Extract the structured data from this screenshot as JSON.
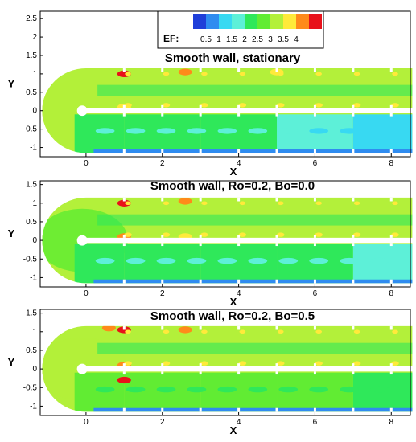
{
  "colors": {
    "levels": [
      "#1f3fd9",
      "#2f8cf0",
      "#38d9f2",
      "#5df0d8",
      "#2fe85a",
      "#61ec33",
      "#b3f03a",
      "#ffea3a",
      "#ff8a1a",
      "#e8111a"
    ],
    "background": "#ffffff",
    "gap": "#ffffff",
    "rib": "#ffffff"
  },
  "legend": {
    "title": "EF:",
    "ticks": [
      "0.5",
      "1",
      "1.5",
      "2",
      "2.5",
      "3",
      "3.5",
      "4"
    ]
  },
  "chart_data": [
    {
      "type": "heatmap",
      "title": "Smooth wall, stationary",
      "xlabel": "X",
      "ylabel": "Y",
      "xlim": [
        -1.2,
        8.5
      ],
      "ylim": [
        -1.25,
        2.7
      ],
      "xticks": [
        "0",
        "2",
        "4",
        "6",
        "8"
      ],
      "yticks": [
        "2.5",
        "2",
        "1.5",
        "1",
        "0.5",
        "0",
        "-0.5",
        "-1"
      ],
      "colorbar": {
        "label": "EF",
        "levels": [
          0.5,
          1,
          1.5,
          2,
          2.5,
          3,
          3.5,
          4
        ]
      },
      "upper_passage_EF": 2.5,
      "turn_EF": 2.5,
      "lower_passage_EF": [
        {
          "x": 0,
          "EF": 1.5
        },
        {
          "x": 2,
          "EF": 1.5
        },
        {
          "x": 4,
          "EF": 1.5
        },
        {
          "x": 6,
          "EF": 1.0
        },
        {
          "x": 8,
          "EF": 0.5
        }
      ],
      "hot_spots": [
        {
          "x": 1.0,
          "y": 1.0,
          "EF": 4
        },
        {
          "x": 2.6,
          "y": 1.05,
          "EF": 3.5
        },
        {
          "x": 1.0,
          "y": 0.1,
          "EF": 3
        },
        {
          "x": 5.0,
          "y": 1.05,
          "EF": 3
        }
      ]
    },
    {
      "type": "heatmap",
      "title": "Smooth wall, Ro=0.2, Bo=0.0",
      "xlabel": "X",
      "ylabel": "Y",
      "xlim": [
        -1.2,
        8.5
      ],
      "ylim": [
        -1.25,
        1.6
      ],
      "xticks": [
        "0",
        "2",
        "4",
        "6",
        "8"
      ],
      "yticks": [
        "1.5",
        "1",
        "0.5",
        "0",
        "-0.5",
        "-1"
      ],
      "colorbar": {
        "label": "EF",
        "levels": [
          0.5,
          1,
          1.5,
          2,
          2.5,
          3,
          3.5,
          4
        ]
      },
      "upper_passage_EF": 2.5,
      "turn_EF": 2.0,
      "lower_passage_EF": [
        {
          "x": 0,
          "EF": 1.5
        },
        {
          "x": 2,
          "EF": 1.5
        },
        {
          "x": 4,
          "EF": 1.5
        },
        {
          "x": 6,
          "EF": 1.5
        },
        {
          "x": 8,
          "EF": 1.0
        }
      ],
      "hot_spots": [
        {
          "x": 1.0,
          "y": 1.0,
          "EF": 4
        },
        {
          "x": 1.0,
          "y": 0.1,
          "EF": 3.5
        },
        {
          "x": 2.6,
          "y": 1.05,
          "EF": 3.5
        },
        {
          "x": 2.6,
          "y": 0.1,
          "EF": 3
        }
      ]
    },
    {
      "type": "heatmap",
      "title": "Smooth wall, Ro=0.2, Bo=0.5",
      "xlabel": "X",
      "ylabel": "Y",
      "xlim": [
        -1.2,
        8.5
      ],
      "ylim": [
        -1.25,
        1.6
      ],
      "xticks": [
        "0",
        "2",
        "4",
        "6",
        "8"
      ],
      "yticks": [
        "1.5",
        "1",
        "0.5",
        "0",
        "-0.5",
        "-1"
      ],
      "colorbar": {
        "label": "EF",
        "levels": [
          0.5,
          1,
          1.5,
          2,
          2.5,
          3,
          3.5,
          4
        ]
      },
      "upper_passage_EF": 2.5,
      "turn_EF": 2.5,
      "lower_passage_EF": [
        {
          "x": 0,
          "EF": 2.0
        },
        {
          "x": 2,
          "EF": 2.0
        },
        {
          "x": 4,
          "EF": 2.0
        },
        {
          "x": 6,
          "EF": 2.0
        },
        {
          "x": 8,
          "EF": 1.5
        }
      ],
      "hot_spots": [
        {
          "x": 1.0,
          "y": 1.05,
          "EF": 4
        },
        {
          "x": 0.6,
          "y": 1.1,
          "EF": 3.5
        },
        {
          "x": 1.0,
          "y": 0.1,
          "EF": 3.5
        },
        {
          "x": 1.0,
          "y": -0.3,
          "EF": 4
        },
        {
          "x": 2.6,
          "y": 1.05,
          "EF": 3.5
        }
      ]
    }
  ]
}
